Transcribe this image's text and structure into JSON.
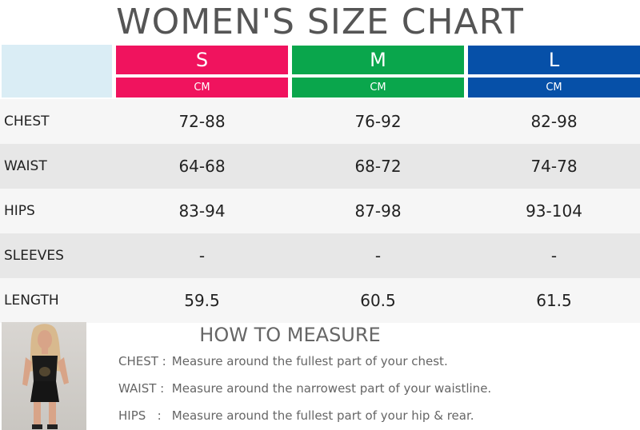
{
  "title": "WOMEN'S SIZE CHART",
  "sizes": [
    {
      "name": "S",
      "unit": "CM",
      "color": "#f0135e"
    },
    {
      "name": "M",
      "unit": "CM",
      "color": "#0aa64c"
    },
    {
      "name": "L",
      "unit": "CM",
      "color": "#0650a8"
    }
  ],
  "rows": [
    {
      "label": "CHEST",
      "values": [
        "72-88",
        "76-92",
        "82-98"
      ]
    },
    {
      "label": "WAIST",
      "values": [
        "64-68",
        "68-72",
        "74-78"
      ]
    },
    {
      "label": "HIPS",
      "values": [
        "83-94",
        "87-98",
        "93-104"
      ]
    },
    {
      "label": "SLEEVES",
      "values": [
        "-",
        "-",
        "-"
      ]
    },
    {
      "label": "LENGTH",
      "values": [
        "59.5",
        "60.5",
        "61.5"
      ]
    }
  ],
  "how_to_measure": {
    "title": "HOW TO MEASURE",
    "items": [
      {
        "key": "CHEST :",
        "text": "Measure around the fullest part of your chest."
      },
      {
        "key": "WAIST :",
        "text": "Measure around the narrowest part of your waistline."
      },
      {
        "key": "HIPS   :",
        "text": "Measure around the fullest part of your hip & rear."
      }
    ]
  }
}
